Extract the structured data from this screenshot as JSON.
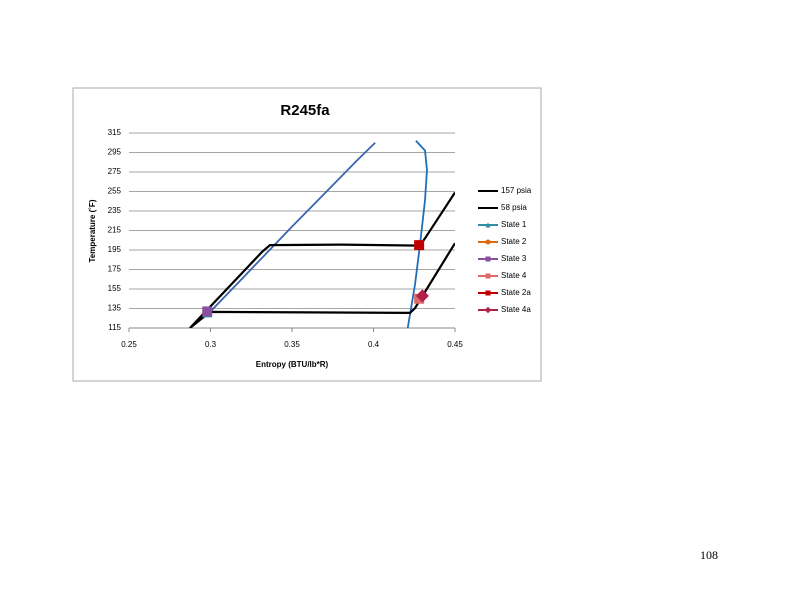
{
  "chart_data": {
    "type": "scatter",
    "title": "R245fa",
    "x_label": "Entropy (BTU/lb*R)",
    "y_label": "Temperature (˚F)",
    "xlim": [
      0.25,
      0.45
    ],
    "xticks": [
      0.25,
      0.3,
      0.35,
      0.4,
      0.45
    ],
    "ylim": [
      115,
      315
    ],
    "yticks": [
      115,
      135,
      155,
      175,
      195,
      215,
      235,
      255,
      275,
      295,
      315
    ],
    "grid": true,
    "legend": "right",
    "series": [
      {
        "color": "#3a66b0",
        "line": true,
        "marker": "none",
        "x": [
          0.2874,
          0.3,
          0.315,
          0.3334,
          0.35,
          0.37,
          0.39,
          0.401
        ],
        "values": [
          115,
          132,
          158,
          190,
          219,
          253,
          287,
          305
        ]
      },
      {
        "color": "#1f6fb8",
        "line": true,
        "marker": "none",
        "x": [
          0.421,
          0.4255,
          0.4285,
          0.4316,
          0.4328,
          0.4316,
          0.426
        ],
        "values": [
          115,
          160,
          200,
          246,
          277,
          297,
          307
        ]
      },
      {
        "name": "157 psia",
        "color": "#000000",
        "line": true,
        "marker": "none",
        "x": [
          0.2874,
          0.3316,
          0.3365,
          0.38,
          0.4285,
          0.4316,
          0.45
        ],
        "values": [
          115,
          193,
          200,
          200.5,
          199.5,
          207,
          254
        ]
      },
      {
        "name": "58 psia",
        "color": "#000000",
        "line": true,
        "marker": "none",
        "x": [
          0.2874,
          0.2997,
          0.36,
          0.4224,
          0.4255,
          0.45
        ],
        "values": [
          115,
          131.5,
          131,
          130.5,
          135.5,
          202
        ]
      },
      {
        "name": "State 1",
        "color": "#2e8ea8",
        "line": false,
        "marker": "triangle",
        "x": [
          0.298
        ],
        "values": [
          131
        ]
      },
      {
        "name": "State 2",
        "color": "#e0650f",
        "line": false,
        "marker": "circle",
        "x": [
          0.428
        ],
        "values": [
          200
        ]
      },
      {
        "name": "State 3",
        "color": "#8a4f9e",
        "line": false,
        "marker": "square",
        "x": [
          0.298
        ],
        "values": [
          132
        ]
      },
      {
        "name": "State 4",
        "color": "#e06a6a",
        "line": false,
        "marker": "square",
        "x": [
          0.428
        ],
        "values": [
          145
        ]
      },
      {
        "name": "State 2a",
        "color": "#c00000",
        "line": false,
        "marker": "square",
        "x": [
          0.428
        ],
        "values": [
          200
        ]
      },
      {
        "name": "State 4a",
        "color": "#b0204a",
        "line": false,
        "marker": "diamond",
        "x": [
          0.43
        ],
        "values": [
          148
        ]
      }
    ]
  },
  "page_number": 108
}
